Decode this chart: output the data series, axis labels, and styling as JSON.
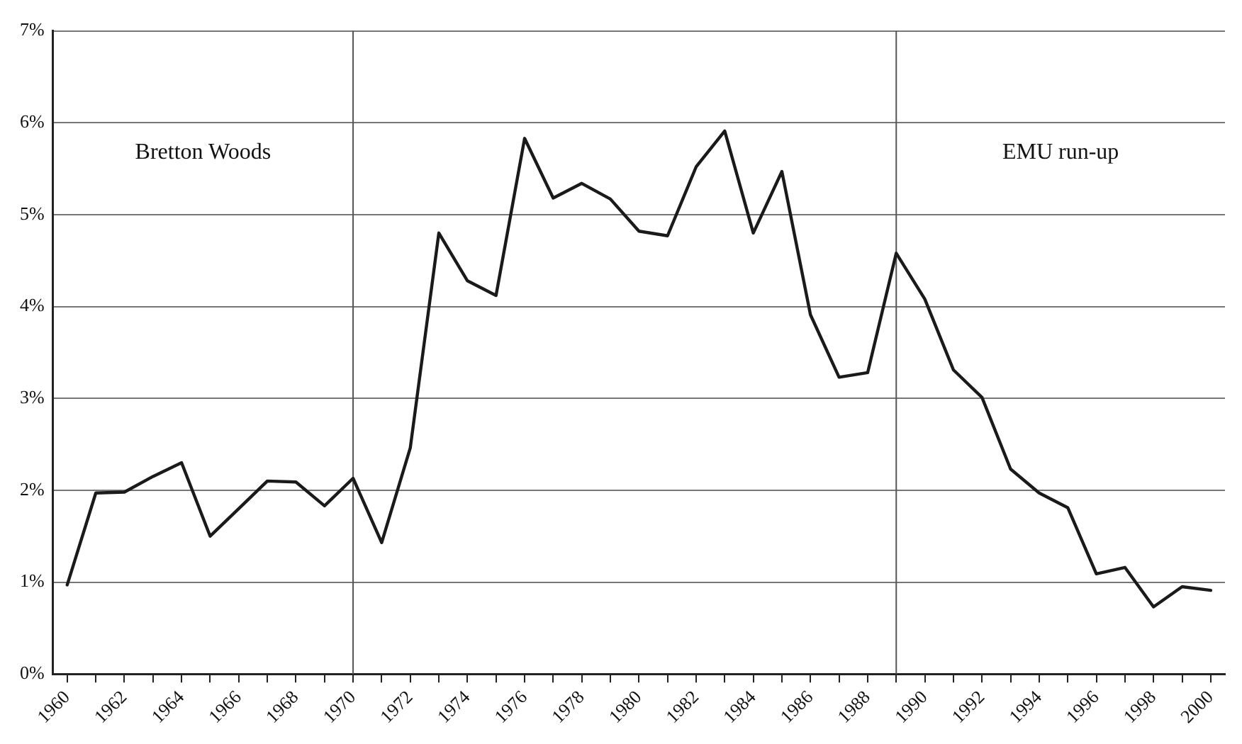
{
  "chart_data": {
    "type": "line",
    "x": [
      1960,
      1961,
      1962,
      1963,
      1964,
      1965,
      1966,
      1967,
      1968,
      1969,
      1970,
      1971,
      1972,
      1973,
      1974,
      1975,
      1976,
      1977,
      1978,
      1979,
      1980,
      1981,
      1982,
      1983,
      1984,
      1985,
      1986,
      1987,
      1988,
      1989,
      1990,
      1991,
      1992,
      1993,
      1994,
      1995,
      1996,
      1997,
      1998,
      1999,
      2000
    ],
    "series": [
      {
        "color": "#1a1a1a",
        "values": [
          0.97,
          1.97,
          1.98,
          2.15,
          2.3,
          1.5,
          1.8,
          2.1,
          2.09,
          1.83,
          2.13,
          1.43,
          2.46,
          4.8,
          4.28,
          4.12,
          5.83,
          5.18,
          5.34,
          5.17,
          4.82,
          4.77,
          5.52,
          5.91,
          4.8,
          5.47,
          3.91,
          3.23,
          3.28,
          4.58,
          4.08,
          3.31,
          3.01,
          2.23,
          1.97,
          1.81,
          1.09,
          1.16,
          0.73,
          0.95,
          0.91
        ]
      }
    ],
    "xlim": [
      1959.5,
      2000.5
    ],
    "xticks": [
      1960,
      {
        "value": 1961,
        "label": null
      },
      1962,
      {
        "value": 1963,
        "label": null
      },
      1964,
      {
        "value": 1965,
        "label": null
      },
      1966,
      {
        "value": 1967,
        "label": null
      },
      1968,
      {
        "value": 1969,
        "label": null
      },
      1970,
      {
        "value": 1971,
        "label": null
      },
      1972,
      {
        "value": 1973,
        "label": null
      },
      1974,
      {
        "value": 1975,
        "label": null
      },
      1976,
      {
        "value": 1977,
        "label": null
      },
      1978,
      {
        "value": 1979,
        "label": null
      },
      1980,
      {
        "value": 1981,
        "label": null
      },
      1982,
      {
        "value": 1983,
        "label": null
      },
      1984,
      {
        "value": 1985,
        "label": null
      },
      1986,
      {
        "value": 1987,
        "label": null
      },
      1988,
      {
        "value": 1989,
        "label": null
      },
      1990,
      {
        "value": 1991,
        "label": null
      },
      1992,
      {
        "value": 1993,
        "label": null
      },
      1994,
      {
        "value": 1995,
        "label": null
      },
      1996,
      {
        "value": 1997,
        "label": null
      },
      1998,
      {
        "value": 1999,
        "label": null
      },
      2000
    ],
    "ylim": [
      0,
      7
    ],
    "yticks": [
      {
        "value": 0,
        "label": "0%"
      },
      {
        "value": 1,
        "label": "1%"
      },
      {
        "value": 2,
        "label": "2%"
      },
      {
        "value": 3,
        "label": "3%"
      },
      {
        "value": 4,
        "label": "4%"
      },
      {
        "value": 5,
        "label": "5%"
      },
      {
        "value": 6,
        "label": "6%"
      },
      {
        "value": 7,
        "label": "7%"
      }
    ],
    "ref_lines": [
      {
        "axis": "x",
        "value": 1970,
        "color": "#555555"
      },
      {
        "axis": "x",
        "value": 1989,
        "color": "#555555"
      }
    ],
    "annotations": [
      "Bretton Woods",
      "EMU run-up"
    ],
    "grid": "y",
    "legend": false,
    "marker": "none",
    "line_style": "solid"
  }
}
